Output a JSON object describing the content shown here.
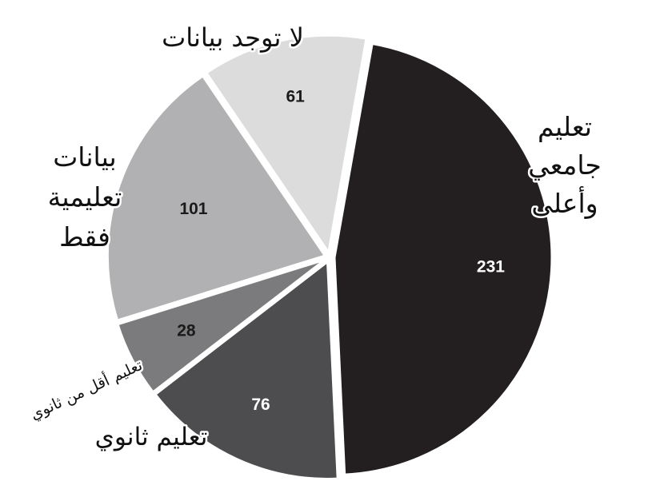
{
  "chart_data": {
    "type": "pie",
    "title": "",
    "slices": [
      {
        "label": "تعليم جامعي وأعلى",
        "value": 231,
        "color": "#231f20",
        "value_color": "#ffffff"
      },
      {
        "label": "تعليم ثانوي",
        "value": 76,
        "color": "#4d4d4f",
        "value_color": "#ffffff"
      },
      {
        "label": "تعليم أقل من ثانوي",
        "value": 28,
        "color": "#7b7b7d",
        "value_color": "#1a1a1a"
      },
      {
        "label": "بيانات تعليمية فقط",
        "value": 101,
        "color": "#b1b1b3",
        "value_color": "#1a1a1a"
      },
      {
        "label": "لا توجد بيانات",
        "value": 61,
        "color": "#dcdcdd",
        "value_color": "#1a1a1a"
      }
    ]
  }
}
